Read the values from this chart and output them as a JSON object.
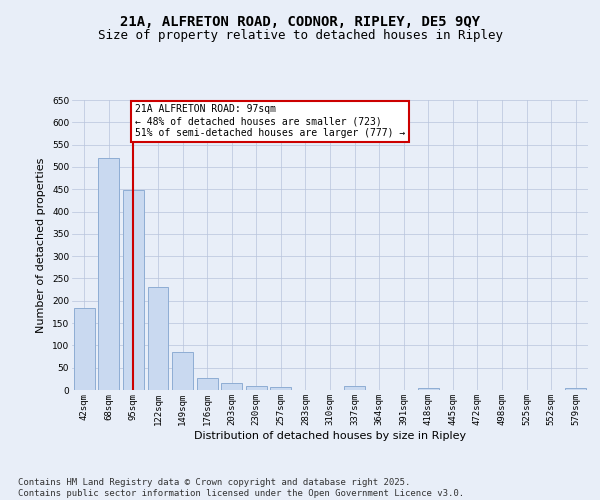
{
  "title1": "21A, ALFRETON ROAD, CODNOR, RIPLEY, DE5 9QY",
  "title2": "Size of property relative to detached houses in Ripley",
  "xlabel": "Distribution of detached houses by size in Ripley",
  "ylabel": "Number of detached properties",
  "categories": [
    "42sqm",
    "68sqm",
    "95sqm",
    "122sqm",
    "149sqm",
    "176sqm",
    "203sqm",
    "230sqm",
    "257sqm",
    "283sqm",
    "310sqm",
    "337sqm",
    "364sqm",
    "391sqm",
    "418sqm",
    "445sqm",
    "472sqm",
    "498sqm",
    "525sqm",
    "552sqm",
    "579sqm"
  ],
  "values": [
    183,
    519,
    449,
    230,
    85,
    27,
    15,
    10,
    7,
    0,
    0,
    8,
    0,
    0,
    4,
    0,
    0,
    0,
    0,
    0,
    4
  ],
  "bar_color": "#c9d9f0",
  "bar_edge_color": "#8eadd4",
  "vline_x": 2,
  "vline_color": "#cc0000",
  "annotation_text": "21A ALFRETON ROAD: 97sqm\n← 48% of detached houses are smaller (723)\n51% of semi-detached houses are larger (777) →",
  "annotation_box_color": "#ffffff",
  "annotation_box_edge": "#cc0000",
  "ylim": [
    0,
    650
  ],
  "yticks": [
    0,
    50,
    100,
    150,
    200,
    250,
    300,
    350,
    400,
    450,
    500,
    550,
    600,
    650
  ],
  "footer_text": "Contains HM Land Registry data © Crown copyright and database right 2025.\nContains public sector information licensed under the Open Government Licence v3.0.",
  "bg_color": "#e8eef8",
  "plot_bg_color": "#e8eef8",
  "grid_color": "#b8c4dc",
  "title_fontsize": 10,
  "subtitle_fontsize": 9,
  "tick_fontsize": 6.5,
  "axis_label_fontsize": 8,
  "footer_fontsize": 6.5
}
